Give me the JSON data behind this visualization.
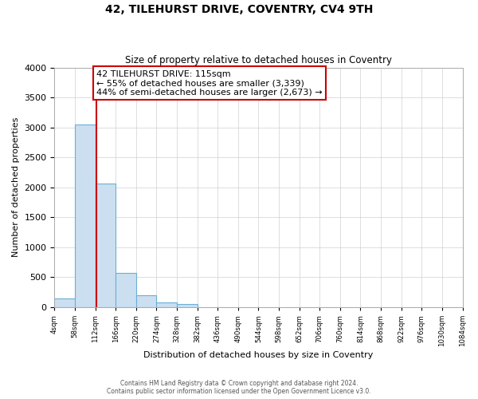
{
  "title": "42, TILEHURST DRIVE, COVENTRY, CV4 9TH",
  "subtitle": "Size of property relative to detached houses in Coventry",
  "xlabel": "Distribution of detached houses by size in Coventry",
  "ylabel": "Number of detached properties",
  "bin_edges": [
    4,
    58,
    112,
    166,
    220,
    274,
    328,
    382,
    436,
    490,
    544,
    598,
    652,
    706,
    760,
    814,
    868,
    922,
    976,
    1030,
    1084
  ],
  "bar_heights": [
    150,
    3050,
    2070,
    570,
    200,
    75,
    50,
    0,
    0,
    0,
    0,
    0,
    0,
    0,
    0,
    0,
    0,
    0,
    0,
    0
  ],
  "bar_color": "#ccdff0",
  "bar_edgecolor": "#6aafd6",
  "property_size": 115,
  "property_line_color": "#cc0000",
  "annotation_line1": "42 TILEHURST DRIVE: 115sqm",
  "annotation_line2": "← 55% of detached houses are smaller (3,339)",
  "annotation_line3": "44% of semi-detached houses are larger (2,673) →",
  "annotation_box_edgecolor": "#cc0000",
  "annotation_box_facecolor": "#ffffff",
  "ylim": [
    0,
    4000
  ],
  "yticks": [
    0,
    500,
    1000,
    1500,
    2000,
    2500,
    3000,
    3500,
    4000
  ],
  "footer_line1": "Contains HM Land Registry data © Crown copyright and database right 2024.",
  "footer_line2": "Contains public sector information licensed under the Open Government Licence v3.0.",
  "background_color": "#ffffff",
  "grid_color": "#d0d0d0"
}
